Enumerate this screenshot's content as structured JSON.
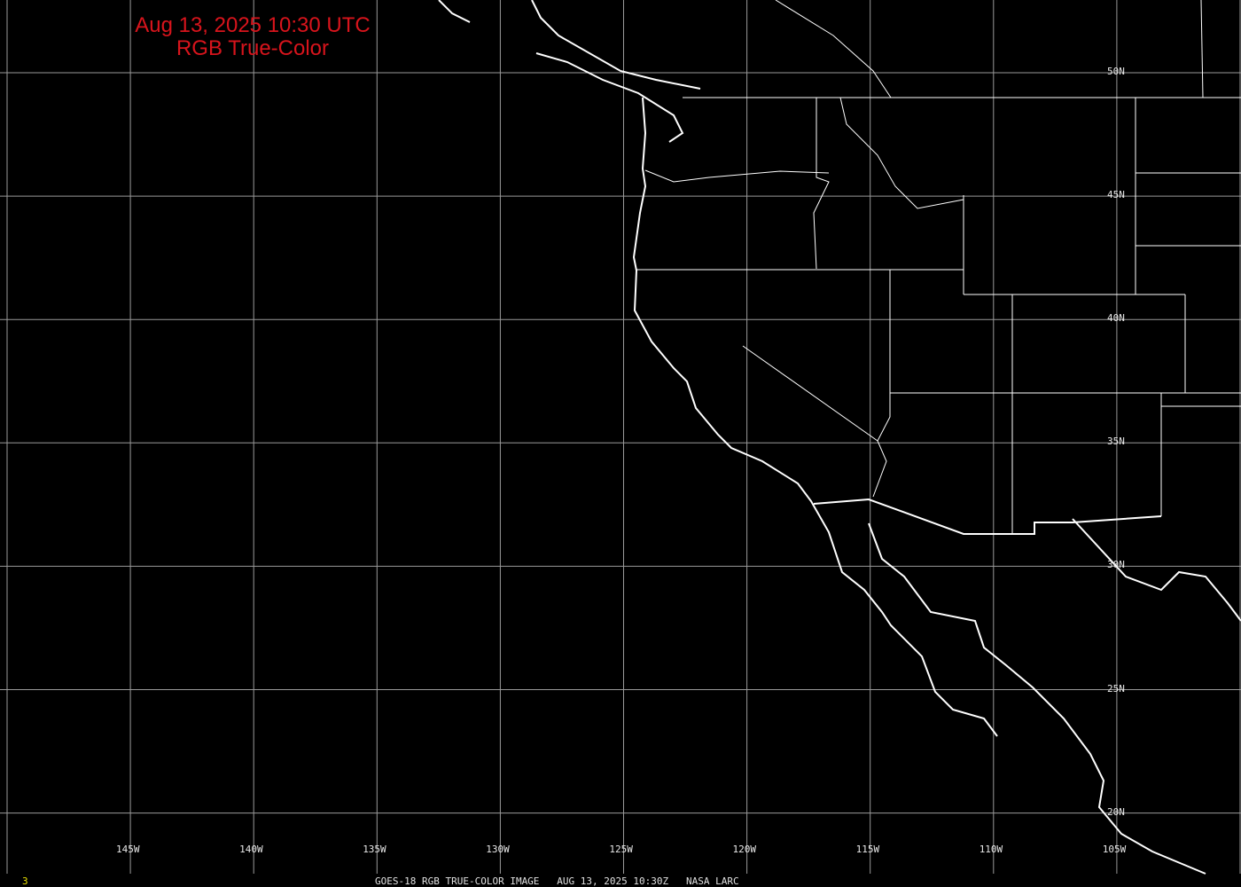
{
  "title": {
    "line1": "Aug 13, 2025 10:30 UTC",
    "line2": "RGB True-Color"
  },
  "latitude_labels": [
    "50N",
    "45N",
    "40N",
    "35N",
    "30N",
    "25N",
    "20N"
  ],
  "longitude_labels": [
    "145W",
    "140W",
    "135W",
    "130W",
    "125W",
    "120W",
    "115W",
    "110W",
    "105W"
  ],
  "footer": {
    "frame_number": "3",
    "caption": "GOES-18 RGB TRUE-COLOR IMAGE   AUG 13, 2025 10:30Z   NASA LARC"
  },
  "colors": {
    "background": "#000000",
    "title": "#d8141c",
    "grid": "#9a9a9a",
    "coastline": "#ffffff",
    "frame_number": "#e8e000"
  }
}
